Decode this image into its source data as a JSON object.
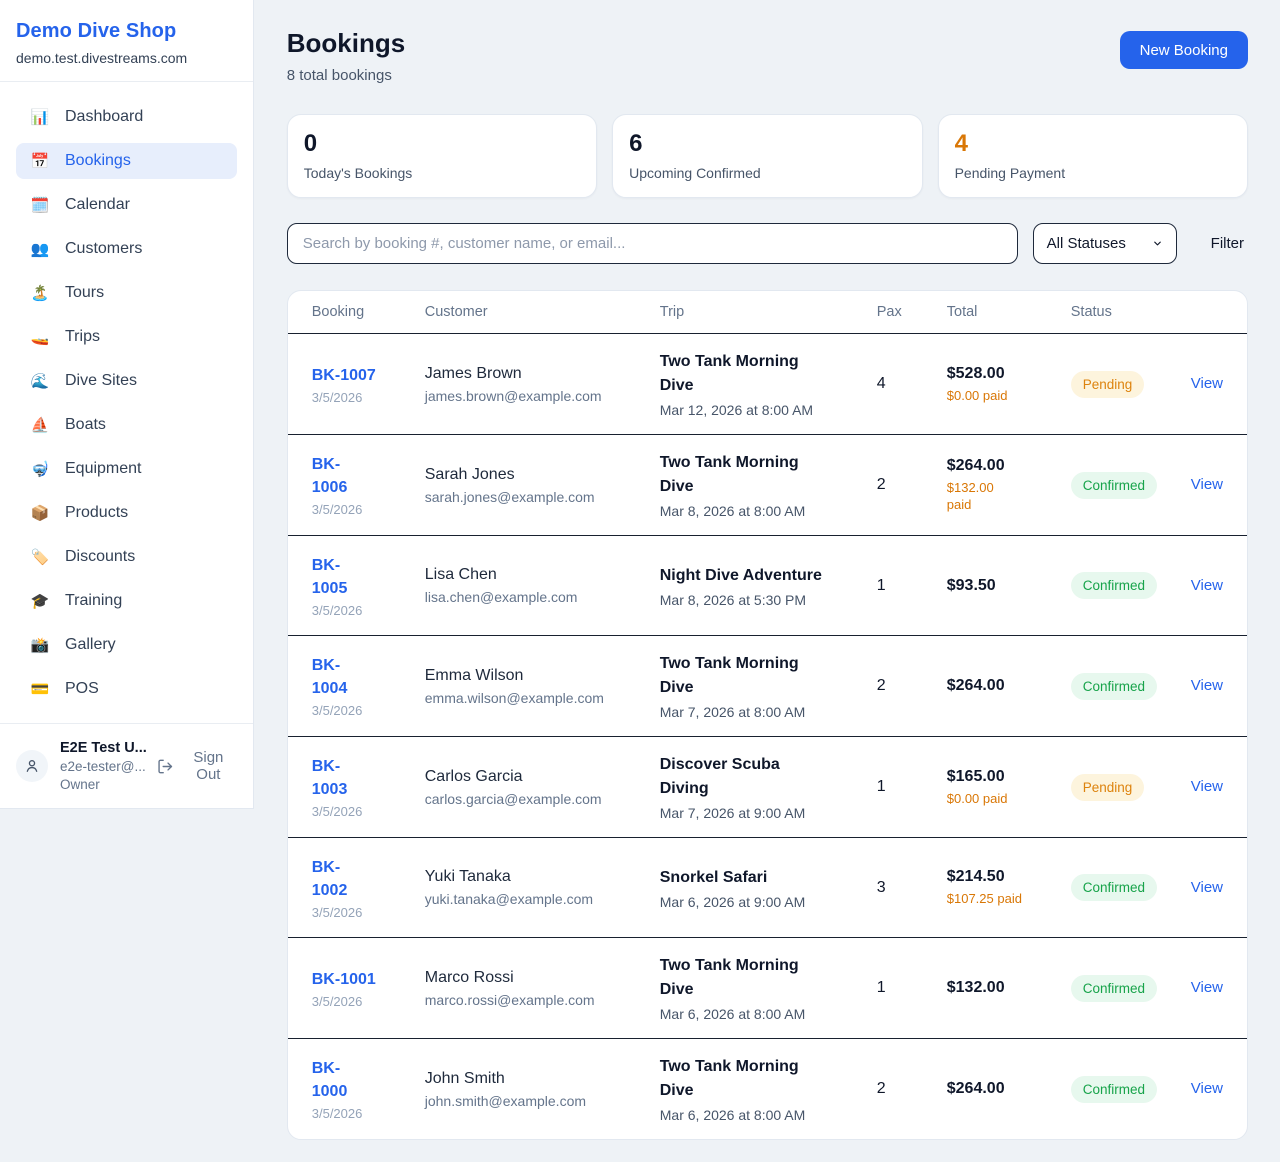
{
  "sidebar": {
    "shop_name": "Demo Dive Shop",
    "domain": "demo.test.divestreams.com",
    "nav": [
      {
        "label": "Dashboard",
        "slug": "dashboard",
        "icon": "📊",
        "icon_name": "bar-chart-icon",
        "active": false
      },
      {
        "label": "Bookings",
        "slug": "bookings",
        "icon": "📅",
        "icon_name": "calendar-icon",
        "active": true
      },
      {
        "label": "Calendar",
        "slug": "calendar",
        "icon": "🗓️",
        "icon_name": "spiral-calendar-icon",
        "active": false
      },
      {
        "label": "Customers",
        "slug": "customers",
        "icon": "👥",
        "icon_name": "people-icon",
        "active": false
      },
      {
        "label": "Tours",
        "slug": "tours",
        "icon": "🏝️",
        "icon_name": "island-icon",
        "active": false
      },
      {
        "label": "Trips",
        "slug": "trips",
        "icon": "🚤",
        "icon_name": "speedboat-icon",
        "active": false
      },
      {
        "label": "Dive Sites",
        "slug": "dive-sites",
        "icon": "🌊",
        "icon_name": "wave-icon",
        "active": false
      },
      {
        "label": "Boats",
        "slug": "boats",
        "icon": "⛵",
        "icon_name": "sailboat-icon",
        "active": false
      },
      {
        "label": "Equipment",
        "slug": "equipment",
        "icon": "🤿",
        "icon_name": "diving-mask-icon",
        "active": false
      },
      {
        "label": "Products",
        "slug": "products",
        "icon": "📦",
        "icon_name": "package-icon",
        "active": false
      },
      {
        "label": "Discounts",
        "slug": "discounts",
        "icon": "🏷️",
        "icon_name": "tag-icon",
        "active": false
      },
      {
        "label": "Training",
        "slug": "training",
        "icon": "🎓",
        "icon_name": "graduation-cap-icon",
        "active": false
      },
      {
        "label": "Gallery",
        "slug": "gallery",
        "icon": "📸",
        "icon_name": "camera-flash-icon",
        "active": false
      },
      {
        "label": "POS",
        "slug": "pos",
        "icon": "💳",
        "icon_name": "credit-card-icon",
        "active": false
      }
    ],
    "user": {
      "name": "E2E Test U...",
      "email": "e2e-tester@...",
      "role": "Owner",
      "sign_out_label": "Sign Out"
    }
  },
  "header": {
    "title": "Bookings",
    "subtitle": "8 total bookings",
    "new_booking_label": "New Booking"
  },
  "stats": [
    {
      "value": "0",
      "label": "Today's Bookings"
    },
    {
      "value": "6",
      "label": "Upcoming Confirmed"
    },
    {
      "value": "4",
      "label": "Pending Payment"
    }
  ],
  "filters": {
    "search_placeholder": "Search by booking #, customer name, or email...",
    "status_selected": "All Statuses",
    "filter_label": "Filter"
  },
  "table": {
    "headers": [
      "Booking",
      "Customer",
      "Trip",
      "Pax",
      "Total",
      "Status"
    ],
    "view_label": "View",
    "rows": [
      {
        "id_lines": [
          "BK-1007"
        ],
        "date": "3/5/2026",
        "customer": "James Brown",
        "email": "james.brown@example.com",
        "trip_lines": [
          "Two Tank Morning",
          "Dive"
        ],
        "datetime": "Mar 12, 2026 at 8:00 AM",
        "pax": "4",
        "total": "$528.00",
        "paid_lines": [
          "$0.00 paid"
        ],
        "status": "Pending"
      },
      {
        "id_lines": [
          "BK-",
          "1006"
        ],
        "date": "3/5/2026",
        "customer": "Sarah Jones",
        "email": "sarah.jones@example.com",
        "trip_lines": [
          "Two Tank Morning",
          "Dive"
        ],
        "datetime": "Mar 8, 2026 at 8:00 AM",
        "pax": "2",
        "total": "$264.00",
        "paid_lines": [
          "$132.00",
          "paid"
        ],
        "status": "Confirmed"
      },
      {
        "id_lines": [
          "BK-",
          "1005"
        ],
        "date": "3/5/2026",
        "customer": "Lisa Chen",
        "email": "lisa.chen@example.com",
        "trip_lines": [
          "Night Dive Adventure"
        ],
        "datetime": "Mar 8, 2026 at 5:30 PM",
        "pax": "1",
        "total": "$93.50",
        "paid_lines": null,
        "status": "Confirmed"
      },
      {
        "id_lines": [
          "BK-",
          "1004"
        ],
        "date": "3/5/2026",
        "customer": "Emma Wilson",
        "email": "emma.wilson@example.com",
        "trip_lines": [
          "Two Tank Morning",
          "Dive"
        ],
        "datetime": "Mar 7, 2026 at 8:00 AM",
        "pax": "2",
        "total": "$264.00",
        "paid_lines": null,
        "status": "Confirmed"
      },
      {
        "id_lines": [
          "BK-",
          "1003"
        ],
        "date": "3/5/2026",
        "customer": "Carlos Garcia",
        "email": "carlos.garcia@example.com",
        "trip_lines": [
          "Discover Scuba",
          "Diving"
        ],
        "datetime": "Mar 7, 2026 at 9:00 AM",
        "pax": "1",
        "total": "$165.00",
        "paid_lines": [
          "$0.00 paid"
        ],
        "status": "Pending"
      },
      {
        "id_lines": [
          "BK-",
          "1002"
        ],
        "date": "3/5/2026",
        "customer": "Yuki Tanaka",
        "email": "yuki.tanaka@example.com",
        "trip_lines": [
          "Snorkel Safari"
        ],
        "datetime": "Mar 6, 2026 at 9:00 AM",
        "pax": "3",
        "total": "$214.50",
        "paid_lines": [
          "$107.25 paid"
        ],
        "status": "Confirmed"
      },
      {
        "id_lines": [
          "BK-1001"
        ],
        "date": "3/5/2026",
        "customer": "Marco Rossi",
        "email": "marco.rossi@example.com",
        "trip_lines": [
          "Two Tank Morning",
          "Dive"
        ],
        "datetime": "Mar 6, 2026 at 8:00 AM",
        "pax": "1",
        "total": "$132.00",
        "paid_lines": null,
        "status": "Confirmed"
      },
      {
        "id_lines": [
          "BK-",
          "1000"
        ],
        "date": "3/5/2026",
        "customer": "John Smith",
        "email": "john.smith@example.com",
        "trip_lines": [
          "Two Tank Morning",
          "Dive"
        ],
        "datetime": "Mar 6, 2026 at 8:00 AM",
        "pax": "2",
        "total": "$264.00",
        "paid_lines": null,
        "status": "Confirmed"
      }
    ]
  },
  "colors": {
    "accent_blue": "#2563eb",
    "pending_text": "#dd830e",
    "pending_bg": "#fdf4dd",
    "confirmed_text": "#17a34a",
    "confirmed_bg": "#e7f8ee",
    "paid_orange": "#d97706",
    "page_bg": "#eef2f6"
  }
}
